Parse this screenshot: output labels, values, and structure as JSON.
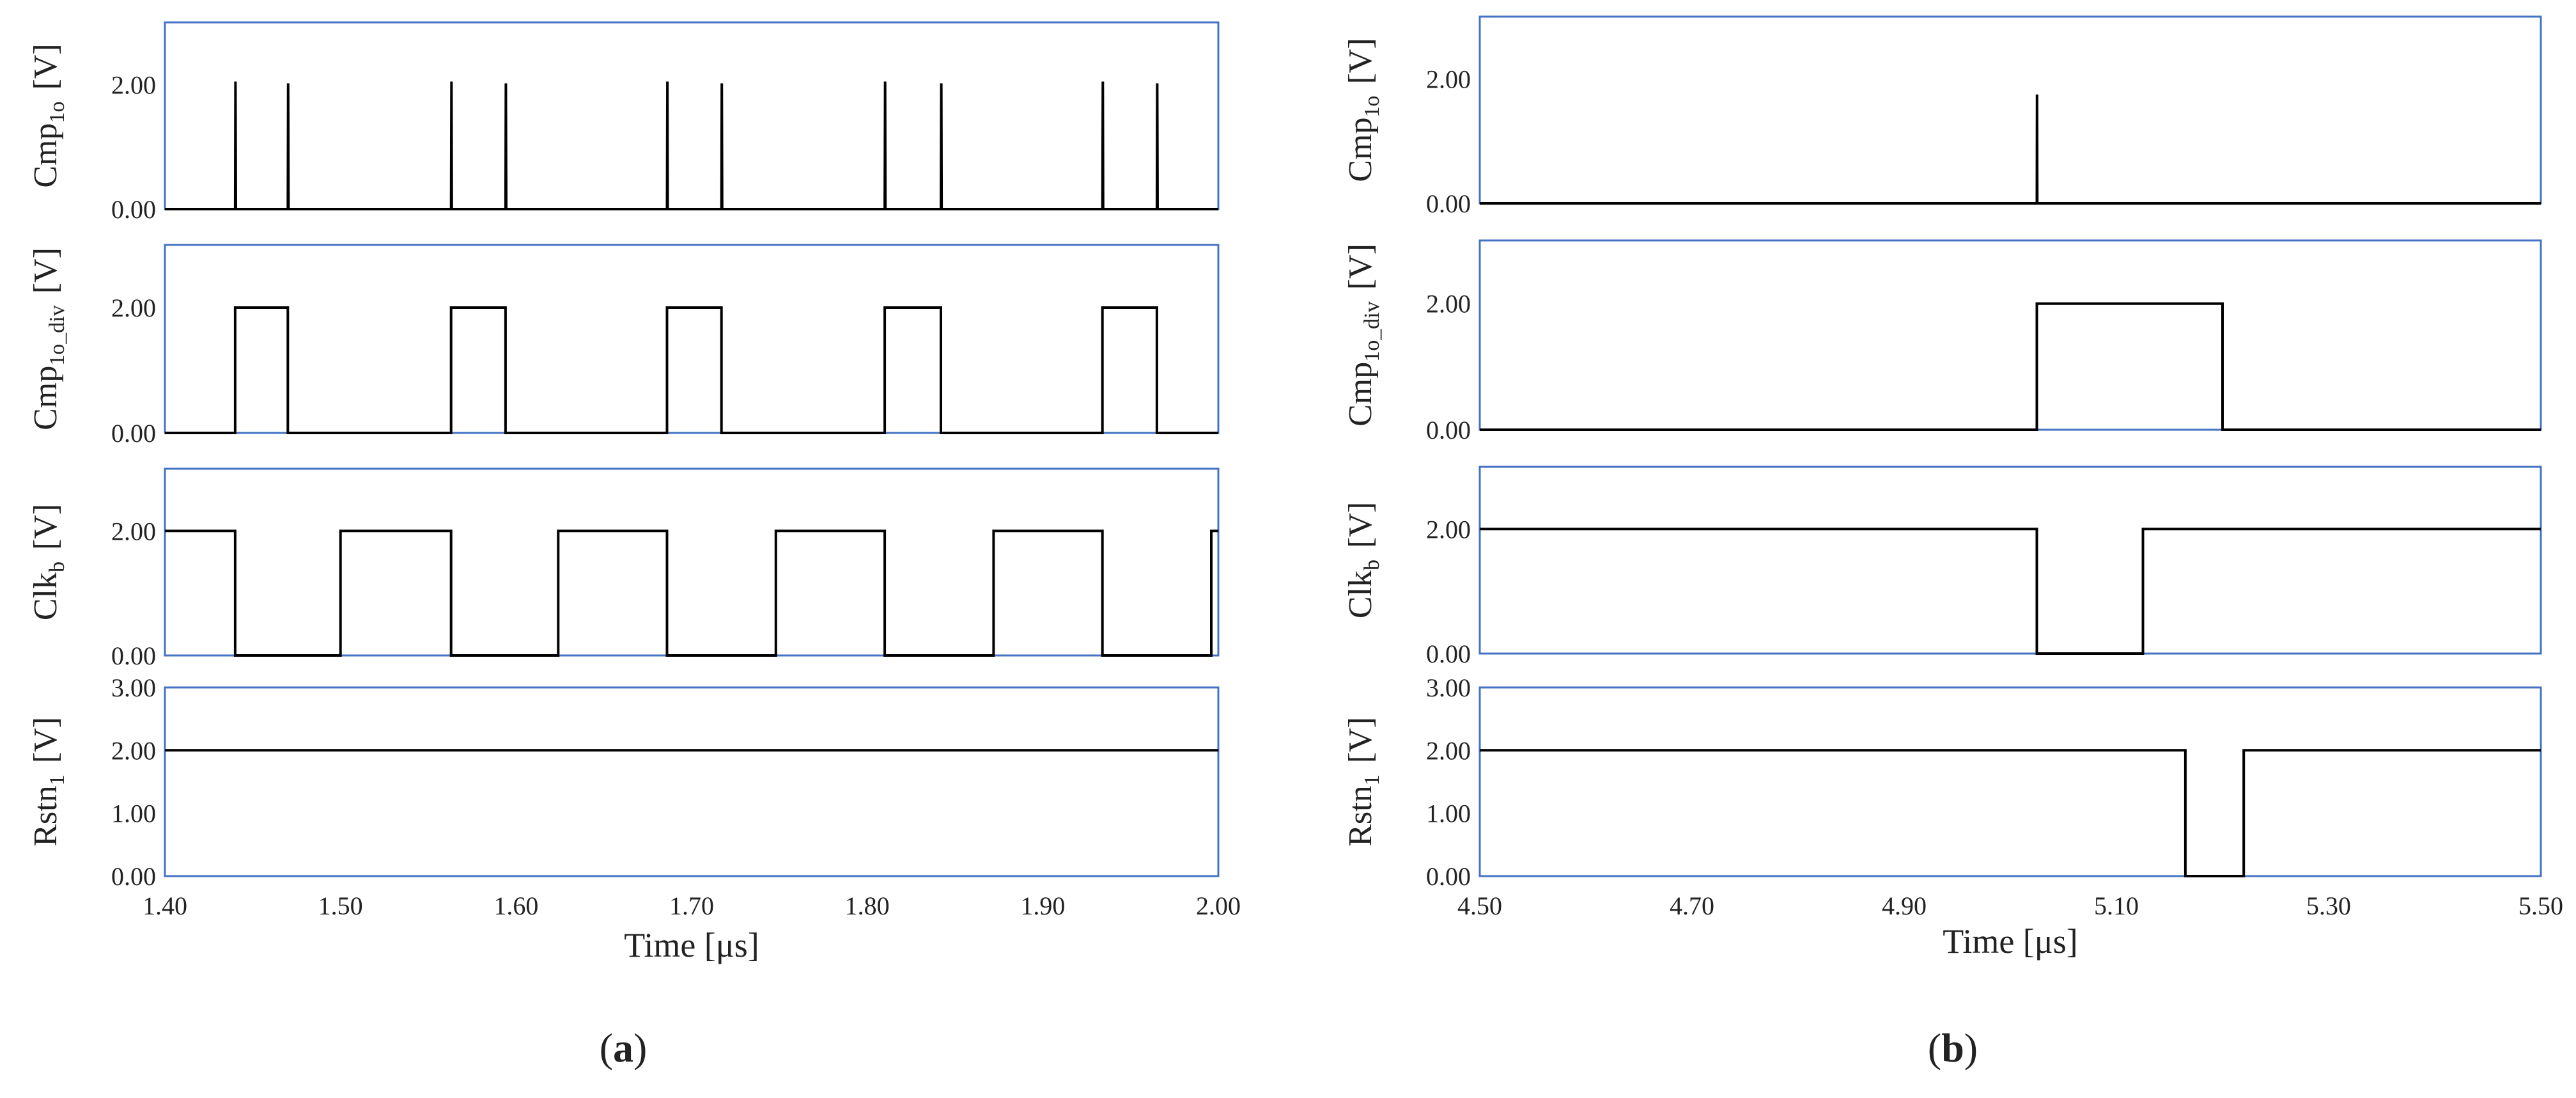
{
  "figure": {
    "panels": [
      {
        "label_open": "(",
        "label_letter": "a",
        "label_close": ")",
        "xlabel": "Time [μs]",
        "xlim": [
          1.4,
          2.0
        ],
        "x_ticks": [
          "1.40",
          "1.50",
          "1.60",
          "1.70",
          "1.80",
          "1.90",
          "2.00"
        ]
      },
      {
        "label_open": "(",
        "label_letter": "b",
        "label_close": ")",
        "xlabel": "Time [μs]",
        "xlim": [
          4.5,
          5.5
        ],
        "x_ticks": [
          "4.50",
          "4.70",
          "4.90",
          "5.10",
          "5.30",
          "5.50"
        ]
      }
    ],
    "rows": [
      {
        "label_main": "Cmp",
        "label_sub": "1o",
        "label_unit": "[V]",
        "y_ticks": [
          "0.00",
          "2.00"
        ]
      },
      {
        "label_main": "Cmp",
        "label_sub": "1o_div",
        "label_unit": "[V]",
        "y_ticks": [
          "0.00",
          "2.00"
        ]
      },
      {
        "label_main": "Clk",
        "label_sub": "b",
        "label_unit": "[V]",
        "y_ticks": [
          "0.00",
          "2.00"
        ]
      },
      {
        "label_main": "Rstn",
        "label_sub": "1",
        "label_unit": "[V]",
        "y_ticks": [
          "0.00",
          "1.00",
          "2.00",
          "3.00"
        ]
      }
    ],
    "colors": {
      "frame": "#4472c4",
      "trace": "#000000",
      "text": "#222222"
    }
  },
  "chart_data": [
    {
      "type": "line",
      "title": "",
      "xlabel": "Time [μs]",
      "xlim": [
        1.4,
        2.0
      ],
      "subplots": [
        {
          "ylabel": "Cmp1o [V]",
          "ylim": [
            0,
            3
          ],
          "series": [
            {
              "name": "",
              "x": [
                1.4,
                1.44,
                1.4402,
                1.4404,
                1.47,
                1.4702,
                1.4704,
                1.563,
                1.5632,
                1.5634,
                1.594,
                1.5942,
                1.5944,
                1.686,
                1.6862,
                1.6864,
                1.717,
                1.7172,
                1.7174,
                1.81,
                1.8102,
                1.8104,
                1.842,
                1.8422,
                1.8424,
                1.934,
                1.9342,
                1.9344,
                1.965,
                1.9652,
                1.9654,
                2.0
              ],
              "y": [
                0,
                0,
                2.05,
                0,
                0,
                2.02,
                0,
                0,
                2.05,
                0,
                0,
                2.02,
                0,
                0,
                2.05,
                0,
                0,
                2.02,
                0,
                0,
                2.05,
                0,
                0,
                2.02,
                0,
                0,
                2.05,
                0,
                0,
                2.02,
                0,
                0
              ]
            }
          ]
        },
        {
          "ylabel": "Cmp1o_div [V]",
          "ylim": [
            0,
            3
          ],
          "series": [
            {
              "name": "",
              "x": [
                1.4,
                1.44,
                1.44,
                1.47,
                1.47,
                1.563,
                1.563,
                1.594,
                1.594,
                1.686,
                1.686,
                1.717,
                1.717,
                1.81,
                1.81,
                1.842,
                1.842,
                1.934,
                1.934,
                1.965,
                1.965,
                2.0
              ],
              "y": [
                0,
                0,
                2,
                2,
                0,
                0,
                2,
                2,
                0,
                0,
                2,
                2,
                0,
                0,
                2,
                2,
                0,
                0,
                2,
                2,
                0,
                0
              ]
            }
          ]
        },
        {
          "ylabel": "Clkb [V]",
          "ylim": [
            0,
            3
          ],
          "series": [
            {
              "name": "",
              "x": [
                1.4,
                1.44,
                1.44,
                1.5,
                1.5,
                1.563,
                1.563,
                1.624,
                1.624,
                1.686,
                1.686,
                1.748,
                1.748,
                1.81,
                1.81,
                1.872,
                1.872,
                1.934,
                1.934,
                1.996,
                1.996,
                2.0
              ],
              "y": [
                2,
                2,
                0,
                0,
                2,
                2,
                0,
                0,
                2,
                2,
                0,
                0,
                2,
                2,
                0,
                0,
                2,
                2,
                0,
                0,
                2,
                2
              ]
            }
          ]
        },
        {
          "ylabel": "Rstn1 [V]",
          "ylim": [
            0,
            3
          ],
          "series": [
            {
              "name": "",
              "x": [
                1.4,
                2.0
              ],
              "y": [
                2,
                2
              ]
            }
          ]
        }
      ]
    },
    {
      "type": "line",
      "title": "",
      "xlabel": "Time [μs]",
      "xlim": [
        4.5,
        5.5
      ],
      "subplots": [
        {
          "ylabel": "Cmp1o [V]",
          "ylim": [
            0,
            3
          ],
          "series": [
            {
              "name": "",
              "x": [
                4.5,
                5.025,
                5.0252,
                5.0254,
                5.5
              ],
              "y": [
                0,
                0,
                1.75,
                0,
                0
              ]
            }
          ]
        },
        {
          "ylabel": "Cmp1o_div [V]",
          "ylim": [
            0,
            3
          ],
          "series": [
            {
              "name": "",
              "x": [
                4.5,
                5.025,
                5.025,
                5.2,
                5.2,
                5.5
              ],
              "y": [
                0,
                0,
                2,
                2,
                0,
                0
              ]
            }
          ]
        },
        {
          "ylabel": "Clkb [V]",
          "ylim": [
            0,
            3
          ],
          "series": [
            {
              "name": "",
              "x": [
                4.5,
                5.025,
                5.025,
                5.125,
                5.125,
                5.5
              ],
              "y": [
                2,
                2,
                0,
                0,
                2,
                2
              ]
            }
          ]
        },
        {
          "ylabel": "Rstn1 [V]",
          "ylim": [
            0,
            3
          ],
          "series": [
            {
              "name": "",
              "x": [
                4.5,
                5.165,
                5.165,
                5.22,
                5.22,
                5.5
              ],
              "y": [
                2,
                2,
                0,
                0,
                2,
                2
              ]
            }
          ]
        }
      ]
    }
  ]
}
